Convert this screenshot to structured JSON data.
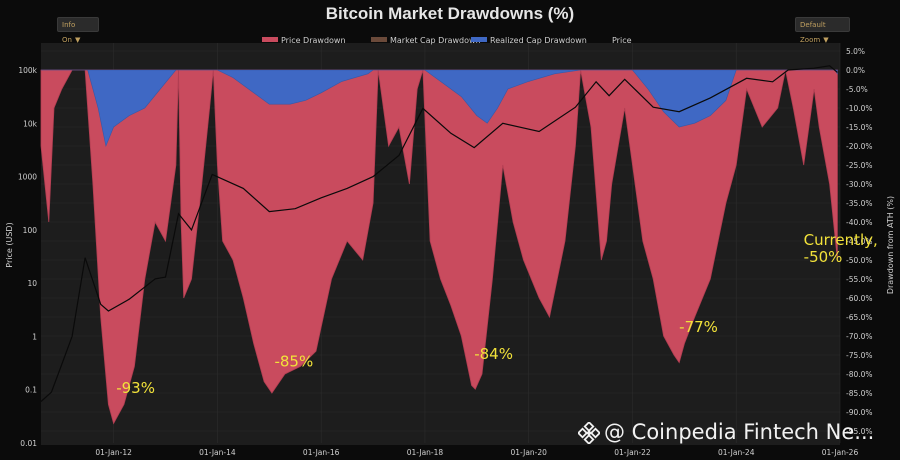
{
  "toolbar": {
    "info_label": "Info On",
    "zoom_label": "Default Zoom"
  },
  "watermark": {
    "text": "@ Coinpedia Fintech Ne..."
  },
  "chart_data": {
    "type": "area",
    "title": "Bitcoin Market Drawdowns (%)",
    "legend": {
      "placement": "top-center",
      "entries": [
        {
          "name": "Price Drawdown",
          "color": "#c94b5e"
        },
        {
          "name": "Market Cap Drawdown",
          "color": "#6b4a3a"
        },
        {
          "name": "Realized Cap Drawdown",
          "color": "#3f68c4"
        },
        {
          "name": "Price",
          "color": "#111111"
        }
      ]
    },
    "x_ticks": [
      "01-Jan-12",
      "01-Jan-14",
      "01-Jan-16",
      "01-Jan-18",
      "01-Jan-20",
      "01-Jan-22",
      "01-Jan-24",
      "01-Jan-26"
    ],
    "x_range": [
      2010.6,
      2026.0
    ],
    "y_left": {
      "label": "Price (USD)",
      "scale": "log",
      "range": [
        0.01,
        100000
      ],
      "ticks": [
        "0.01",
        "0.1",
        "1",
        "10",
        "100",
        "1000",
        "10k",
        "100k"
      ]
    },
    "y_right": {
      "label": "Drawdown from ATH (%)",
      "range": [
        -95,
        5
      ],
      "ticks": [
        "5.0%",
        "0.0%",
        "-5.0%",
        "-10.0%",
        "-15.0%",
        "-20.0%",
        "-25.0%",
        "-30.0%",
        "-35.0%",
        "-40.0%",
        "-45.0%",
        "-50.0%",
        "-55.0%",
        "-60.0%",
        "-65.0%",
        "-70.0%",
        "-75.0%",
        "-80.0%",
        "-85.0%",
        "-90.0%",
        "-95.0%"
      ]
    },
    "grid": true,
    "series": [
      {
        "name": "Price Drawdown",
        "x": [
          2010.6,
          2010.75,
          2010.85,
          2011.0,
          2011.2,
          2011.45,
          2011.6,
          2011.75,
          2011.9,
          2012.0,
          2012.2,
          2012.4,
          2012.6,
          2012.8,
          2013.0,
          2013.2,
          2013.25,
          2013.3,
          2013.35,
          2013.5,
          2013.7,
          2013.85,
          2013.92,
          2014.0,
          2014.1,
          2014.3,
          2014.5,
          2014.7,
          2014.9,
          2015.05,
          2015.3,
          2015.6,
          2015.9,
          2016.2,
          2016.5,
          2016.8,
          2017.0,
          2017.1,
          2017.3,
          2017.5,
          2017.7,
          2017.85,
          2017.96,
          2018.1,
          2018.3,
          2018.5,
          2018.7,
          2018.9,
          2018.97,
          2019.1,
          2019.3,
          2019.5,
          2019.7,
          2019.9,
          2020.2,
          2020.4,
          2020.7,
          2020.9,
          2021.0,
          2021.2,
          2021.4,
          2021.5,
          2021.6,
          2021.85,
          2022.0,
          2022.2,
          2022.4,
          2022.6,
          2022.8,
          2022.9,
          2023.0,
          2023.2,
          2023.5,
          2023.8,
          2024.0,
          2024.2,
          2024.5,
          2024.8,
          2024.95,
          2025.1,
          2025.3,
          2025.5,
          2025.6,
          2025.8,
          2025.95
        ],
        "values": [
          -20,
          -40,
          -10,
          -5,
          0,
          0,
          -30,
          -65,
          -88,
          -93,
          -88,
          -78,
          -55,
          -40,
          -45,
          -25,
          0,
          -40,
          -60,
          -55,
          -30,
          -10,
          0,
          -25,
          -45,
          -50,
          -60,
          -72,
          -82,
          -85,
          -80,
          -78,
          -74,
          -55,
          -45,
          -50,
          -35,
          0,
          -20,
          -15,
          -30,
          -5,
          0,
          -45,
          -55,
          -62,
          -70,
          -83,
          -84,
          -80,
          -55,
          -25,
          -40,
          -50,
          -60,
          -65,
          -45,
          -20,
          0,
          -15,
          -50,
          -45,
          -30,
          -10,
          -25,
          -45,
          -55,
          -70,
          -75,
          -77,
          -72,
          -65,
          -55,
          -35,
          -25,
          -5,
          -15,
          -10,
          0,
          -10,
          -25,
          -5,
          -15,
          -30,
          -50
        ]
      },
      {
        "name": "Realized Cap Drawdown",
        "x": [
          2010.6,
          2011.0,
          2011.5,
          2011.7,
          2011.85,
          2012.0,
          2012.3,
          2012.6,
          2012.9,
          2013.2,
          2014.0,
          2014.3,
          2014.6,
          2015.0,
          2015.4,
          2015.7,
          2016.0,
          2016.4,
          2016.9,
          2017.0,
          2018.0,
          2018.3,
          2018.7,
          2019.0,
          2019.2,
          2019.4,
          2019.6,
          2020.0,
          2020.5,
          2021.0,
          2022.0,
          2022.3,
          2022.6,
          2022.9,
          2023.2,
          2023.5,
          2023.8,
          2024.0,
          2025.9,
          2025.95
        ],
        "values": [
          0,
          0,
          0,
          -10,
          -20,
          -15,
          -12,
          -10,
          -5,
          0,
          0,
          -2,
          -5,
          -9,
          -9,
          -8,
          -6,
          -3,
          -1,
          0,
          0,
          -3,
          -7,
          -12,
          -14,
          -10,
          -5,
          -3,
          -1,
          0,
          0,
          -5,
          -11,
          -15,
          -14,
          -12,
          -8,
          0,
          0,
          -1
        ]
      },
      {
        "name": "Price",
        "x": [
          2010.6,
          2010.8,
          2011.0,
          2011.2,
          2011.45,
          2011.75,
          2011.9,
          2012.3,
          2012.8,
          2013.0,
          2013.25,
          2013.5,
          2013.9,
          2014.5,
          2015.0,
          2015.5,
          2016.0,
          2016.5,
          2017.0,
          2017.5,
          2017.96,
          2018.5,
          2018.95,
          2019.5,
          2020.2,
          2020.9,
          2021.3,
          2021.55,
          2021.85,
          2022.4,
          2022.9,
          2023.5,
          2024.2,
          2024.7,
          2025.0,
          2025.5,
          2025.8,
          2025.95
        ],
        "values": [
          0.06,
          0.09,
          0.3,
          1,
          30,
          4,
          3,
          5,
          12,
          13,
          200,
          100,
          1100,
          600,
          220,
          250,
          400,
          600,
          1000,
          2500,
          19000,
          6500,
          3500,
          10000,
          7000,
          20000,
          60000,
          33000,
          67000,
          20000,
          16500,
          30000,
          70000,
          60000,
          100000,
          108000,
          120000,
          90000
        ]
      }
    ],
    "annotations": [
      {
        "text": "-93%",
        "x": 2012.05,
        "y": -85
      },
      {
        "text": "-85%",
        "x": 2015.1,
        "y": -78
      },
      {
        "text": "-84%",
        "x": 2018.95,
        "y": -76
      },
      {
        "text": "-77%",
        "x": 2022.9,
        "y": -69
      },
      {
        "text": "Currently,",
        "x": 2025.3,
        "y": -46
      },
      {
        "text": "-50%",
        "x": 2025.3,
        "y": -50.5
      }
    ]
  }
}
